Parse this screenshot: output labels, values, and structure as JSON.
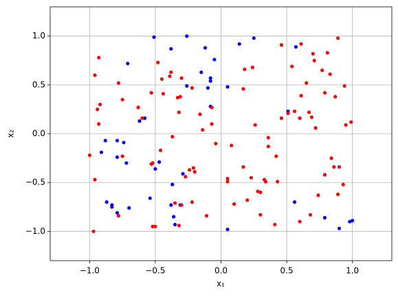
{
  "chart_data": {
    "type": "scatter",
    "xlabel": "x₁",
    "ylabel": "x₂",
    "xlim": [
      -1.3,
      1.3
    ],
    "ylim": [
      -1.3,
      1.3
    ],
    "xticks": [
      {
        "value": -1.0,
        "label": "−1.0"
      },
      {
        "value": -0.5,
        "label": "−0.5"
      },
      {
        "value": 0,
        "label": "0.0"
      },
      0.5,
      {
        "value": 1,
        "label": "1.0"
      }
    ],
    "yticks": [
      {
        "value": -1.0,
        "label": "−1.0"
      },
      {
        "value": -0.5,
        "label": "−0.5"
      },
      {
        "value": 0,
        "label": "0.0"
      },
      0.5,
      {
        "value": 1,
        "label": "1.0"
      }
    ],
    "grid": true,
    "series": [
      {
        "color": "blue",
        "x": [
          -0.51,
          -0.26,
          0.25,
          0.57,
          -0.38,
          -0.12,
          0.14,
          -0.05,
          -0.71,
          -0.15,
          -0.08,
          -0.08,
          -0.1,
          -0.26,
          0.05,
          -0.08,
          0.51,
          -0.58,
          -0.62,
          -0.88,
          -0.79,
          -0.74,
          -0.91,
          -0.47,
          -0.79,
          -0.72,
          -0.5,
          -0.29,
          -0.37,
          -0.87,
          -0.83,
          -0.83,
          -0.7,
          -0.54,
          -0.38,
          -0.31,
          -0.36,
          -0.35,
          -0.79,
          0.05,
          0.56,
          0.79,
          0.9,
          0.98,
          1.0
        ],
        "values": [
          0.99,
          1.0,
          0.98,
          0.89,
          0.87,
          0.88,
          0.92,
          0.76,
          0.72,
          0.63,
          0.57,
          0.54,
          0.47,
          0.49,
          0.48,
          0.28,
          0.23,
          0.16,
          0.13,
          -0.07,
          -0.07,
          -0.09,
          -0.19,
          -0.29,
          -0.24,
          -0.3,
          -0.36,
          -0.41,
          -0.52,
          -0.7,
          -0.73,
          -0.75,
          -0.76,
          -0.66,
          -0.73,
          -0.73,
          -0.85,
          -0.93,
          -0.81,
          -0.98,
          -0.7,
          -0.86,
          -0.97,
          -0.9,
          -0.89
        ]
      },
      {
        "color": "red",
        "x": [
          0.89,
          -0.93,
          -0.48,
          -0.38,
          -0.39,
          -0.45,
          -0.3,
          -0.22,
          -0.53,
          -0.31,
          -0.96,
          0.17,
          0.18,
          0.24,
          0.46,
          0.61,
          0.7,
          0.71,
          0.81,
          0.83,
          0.77,
          0.54,
          0.65,
          0.61,
          0.79,
          0.94,
          0.87,
          0.56,
          0.67,
          0.51,
          0.6,
          0.69,
          0.46,
          0.72,
          0.95,
          0.99,
          -0.94,
          -0.93,
          -0.92,
          -0.78,
          -0.75,
          -0.63,
          -0.6,
          -0.44,
          -0.33,
          -0.32,
          -0.16,
          -0.14,
          -0.07,
          -0.07,
          -0.04,
          0.26,
          0.36,
          0.36,
          0.42,
          0.08,
          -0.37,
          -0.46,
          -1.0,
          -0.75,
          -0.52,
          -0.53,
          -0.96,
          -0.24,
          -0.21,
          -0.2,
          -0.27,
          0.05,
          0.05,
          0.17,
          0.23,
          0.33,
          0.34,
          0.43,
          0.84,
          0.86,
          0.9,
          0.79,
          0.93,
          0.74,
          0.89,
          0.3,
          0.2,
          0.28,
          0.1,
          -0.35,
          -0.3,
          -0.11,
          0.3,
          0.41,
          0.68,
          0.6,
          -0.52,
          -0.5,
          -0.32,
          -0.97,
          -0.78,
          -0.22
        ],
        "values": [
          0.98,
          0.78,
          0.73,
          0.63,
          0.59,
          0.56,
          0.57,
          0.47,
          0.42,
          0.38,
          0.6,
          0.46,
          0.66,
          0.68,
          0.91,
          0.92,
          0.82,
          0.75,
          0.83,
          0.61,
          0.65,
          0.69,
          0.52,
          0.39,
          0.42,
          0.49,
          0.38,
          0.23,
          0.22,
          0.21,
          0.16,
          0.17,
          0.16,
          0.06,
          0.09,
          0.12,
          0.25,
          0.1,
          0.3,
          0.52,
          0.35,
          0.27,
          0.16,
          0.41,
          0.37,
          0.22,
          0.2,
          0.04,
          0.27,
          0.1,
          -0.1,
          0.09,
          -0.04,
          -0.13,
          -0.23,
          -0.12,
          -0.03,
          -0.17,
          -0.22,
          -0.23,
          -0.3,
          -0.31,
          -0.47,
          -0.37,
          -0.35,
          -0.39,
          -0.44,
          -0.46,
          -0.49,
          -0.34,
          -0.45,
          -0.47,
          -0.49,
          -0.49,
          -0.25,
          -0.34,
          -0.34,
          -0.42,
          -0.52,
          -0.63,
          -0.62,
          -0.6,
          -0.68,
          -0.59,
          -0.72,
          -0.71,
          -0.73,
          -0.84,
          -0.83,
          -0.93,
          -0.83,
          -0.9,
          -0.95,
          -0.95,
          -0.94,
          -1.0,
          -0.84,
          -0.7
        ]
      }
    ]
  }
}
